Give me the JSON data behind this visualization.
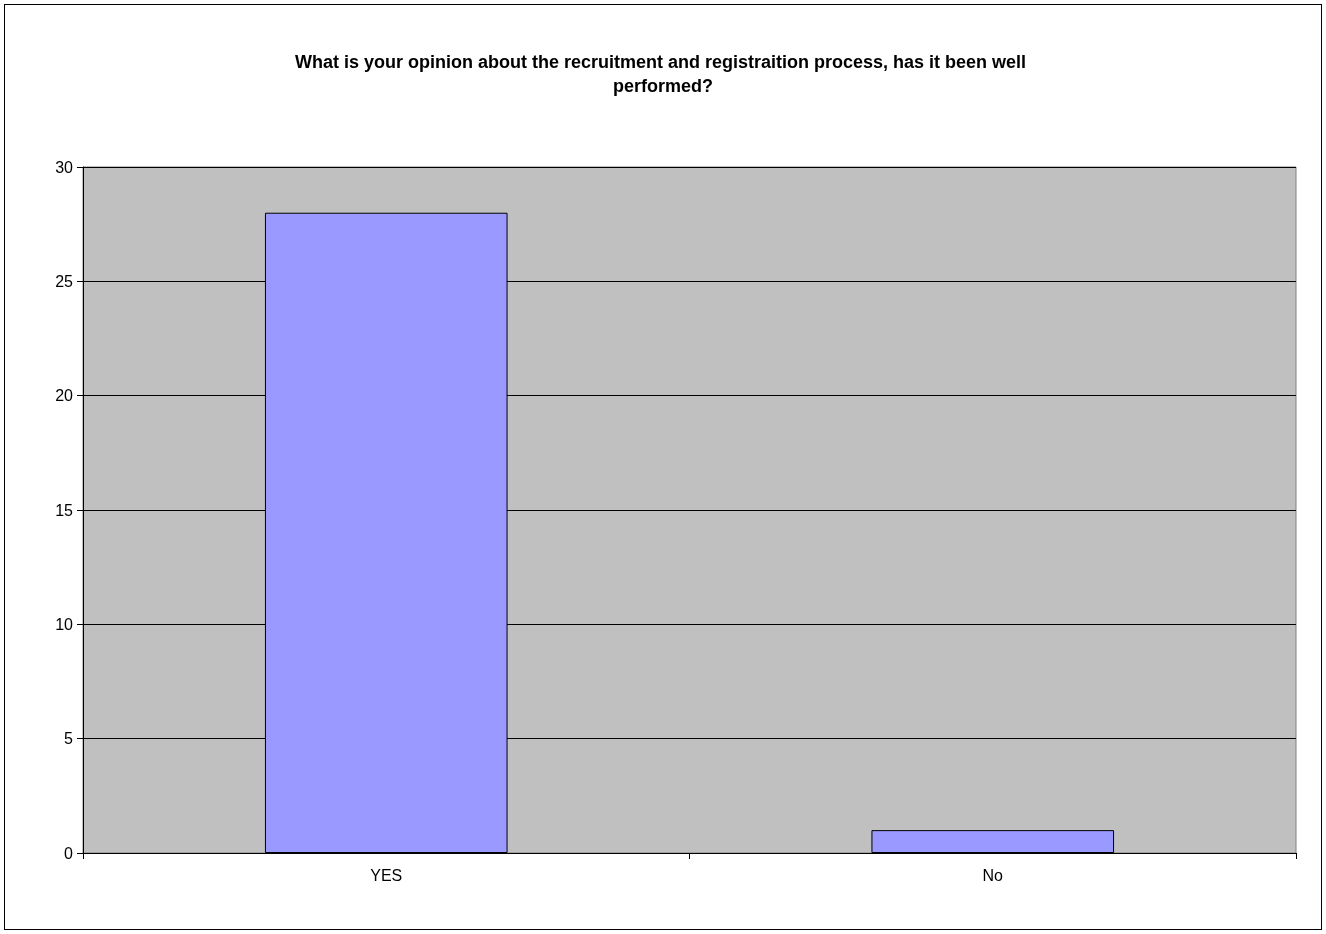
{
  "chart_data": {
    "type": "bar",
    "title": "What is your opinion about the recruitment and registraition process, has it been well performed?",
    "categories": [
      "YES",
      "No"
    ],
    "values": [
      28,
      1
    ],
    "color": "#9999ff",
    "ylim": [
      0,
      30
    ],
    "yticks": [
      0,
      5,
      10,
      15,
      20,
      25,
      30
    ],
    "grid": "y"
  }
}
